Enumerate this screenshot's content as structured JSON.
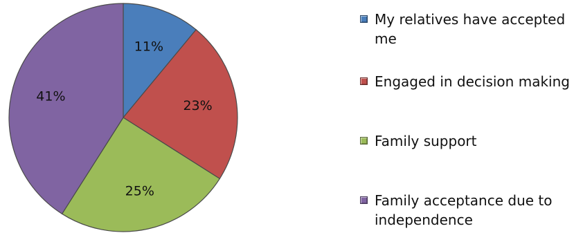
{
  "chart_data": {
    "type": "pie",
    "title": "",
    "start_angle_deg": 0,
    "direction": "clockwise",
    "series": [
      {
        "values": [
          11,
          23,
          25,
          41
        ]
      }
    ],
    "categories": [
      "My relatives have accepted me",
      "Engaged in decision making",
      "Family support",
      "Family acceptance due to independence"
    ],
    "data_labels": [
      "11%",
      "23%",
      "25%",
      "41%"
    ],
    "colors": [
      "#4a7ebb",
      "#c0504d",
      "#9bbb59",
      "#8064a2"
    ],
    "legend_placement": "right"
  },
  "legend": {
    "items": [
      {
        "label": "My relatives have accepted me",
        "color": "#4a7ebb"
      },
      {
        "label": "Engaged in decision making",
        "color": "#c0504d"
      },
      {
        "label": "Family support",
        "color": "#9bbb59"
      },
      {
        "label": "Family acceptance due to independence",
        "color": "#8064a2"
      }
    ]
  }
}
